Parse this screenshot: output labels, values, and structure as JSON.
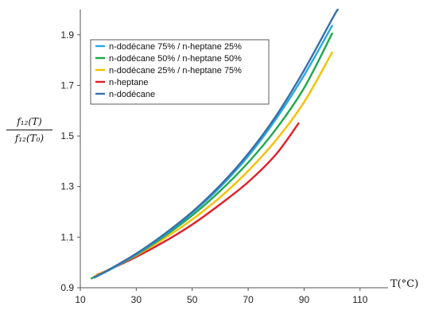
{
  "chart_data": {
    "type": "line",
    "title": "",
    "ylabel": {
      "numerator": "f₁₂(T)",
      "denominator": "f₁₂(T₀)"
    },
    "xlabel": "T(°C)",
    "xlim": [
      10,
      120
    ],
    "ylim": [
      0.9,
      2.0
    ],
    "xticks": [
      10,
      30,
      50,
      70,
      90,
      110
    ],
    "yticks": [
      0.9,
      1.1,
      1.3,
      1.5,
      1.7,
      1.9
    ],
    "grid": false,
    "legend_position": "top-left",
    "series": [
      {
        "name": "n-dodécane 75% / n-heptane 25%",
        "color": "#29A8E0",
        "x": [
          15,
          20,
          30,
          40,
          50,
          60,
          70,
          80,
          90,
          100
        ],
        "y": [
          0.94,
          0.968,
          1.032,
          1.108,
          1.196,
          1.298,
          1.42,
          1.568,
          1.74,
          1.936
        ]
      },
      {
        "name": "n-dodécane 50% / n-heptane 50%",
        "color": "#1EA84A",
        "x": [
          14,
          20,
          30,
          40,
          50,
          60,
          70,
          80,
          90,
          100
        ],
        "y": [
          0.937,
          0.968,
          1.03,
          1.103,
          1.186,
          1.283,
          1.395,
          1.528,
          1.69,
          1.905
        ]
      },
      {
        "name": "n-dodécane 25% / n-heptane 75%",
        "color": "#F5C000",
        "x": [
          15,
          20,
          30,
          40,
          50,
          60,
          70,
          80,
          90,
          100
        ],
        "y": [
          0.945,
          0.971,
          1.028,
          1.095,
          1.17,
          1.258,
          1.362,
          1.484,
          1.634,
          1.83
        ]
      },
      {
        "name": "n-heptane",
        "color": "#E41E26",
        "x": [
          16,
          20,
          30,
          40,
          50,
          60,
          70,
          80,
          88
        ],
        "y": [
          0.952,
          0.97,
          1.022,
          1.082,
          1.15,
          1.23,
          1.318,
          1.428,
          1.55
        ]
      },
      {
        "name": "n-dodécane",
        "color": "#3A6EA5",
        "x": [
          15,
          20,
          30,
          40,
          50,
          60,
          70,
          80,
          90,
          100,
          102
        ],
        "y": [
          0.942,
          0.97,
          1.035,
          1.112,
          1.2,
          1.305,
          1.43,
          1.58,
          1.76,
          1.962,
          2.0
        ]
      }
    ]
  }
}
